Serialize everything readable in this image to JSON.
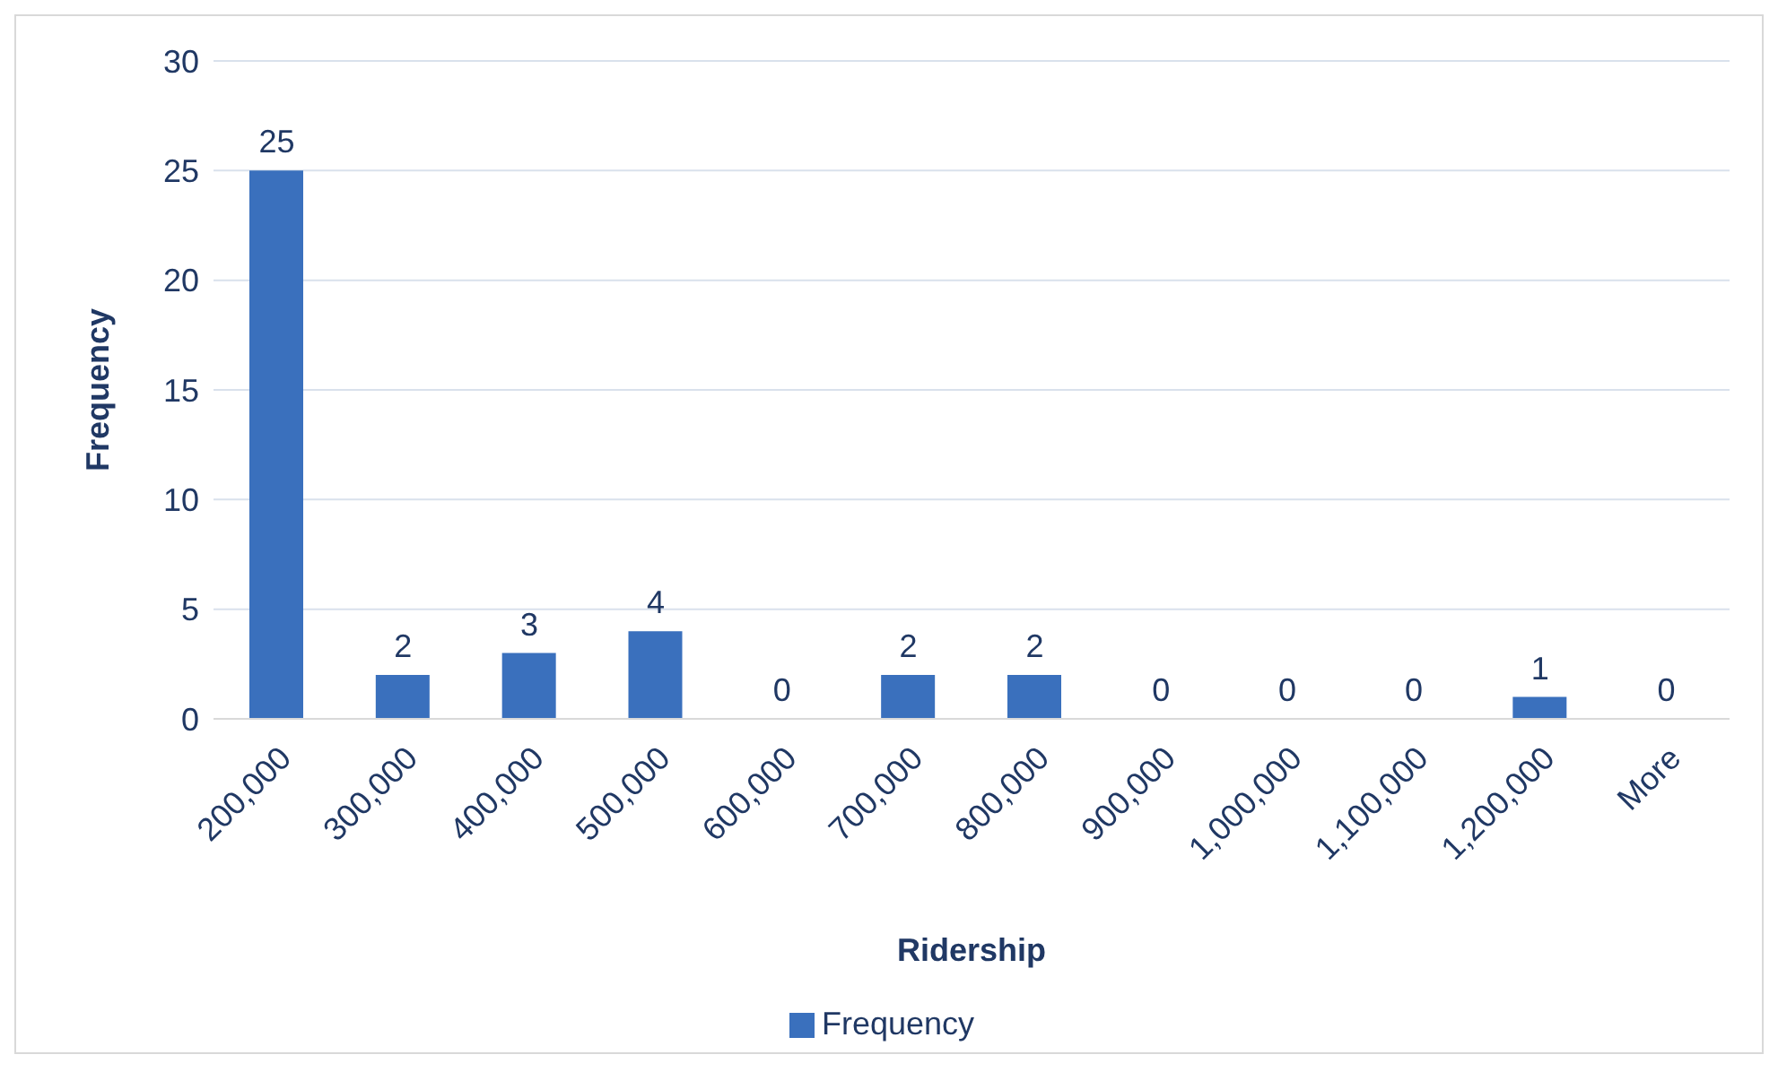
{
  "chart_data": {
    "type": "bar",
    "xlabel": "Ridership",
    "ylabel": "Frequency",
    "categories": [
      "200,000",
      "300,000",
      "400,000",
      "500,000",
      "600,000",
      "700,000",
      "800,000",
      "900,000",
      "1,000,000",
      "1,100,000",
      "1,200,000",
      "More"
    ],
    "series": [
      {
        "name": "Frequency",
        "color": "#3a70bd",
        "values": [
          25,
          2,
          3,
          4,
          0,
          2,
          2,
          0,
          0,
          0,
          1,
          0
        ]
      }
    ],
    "ylim": [
      0,
      30
    ],
    "yticks": [
      0,
      5,
      10,
      15,
      20,
      25,
      30
    ],
    "grid": "y",
    "legend": "bottom",
    "data_labels": true
  }
}
